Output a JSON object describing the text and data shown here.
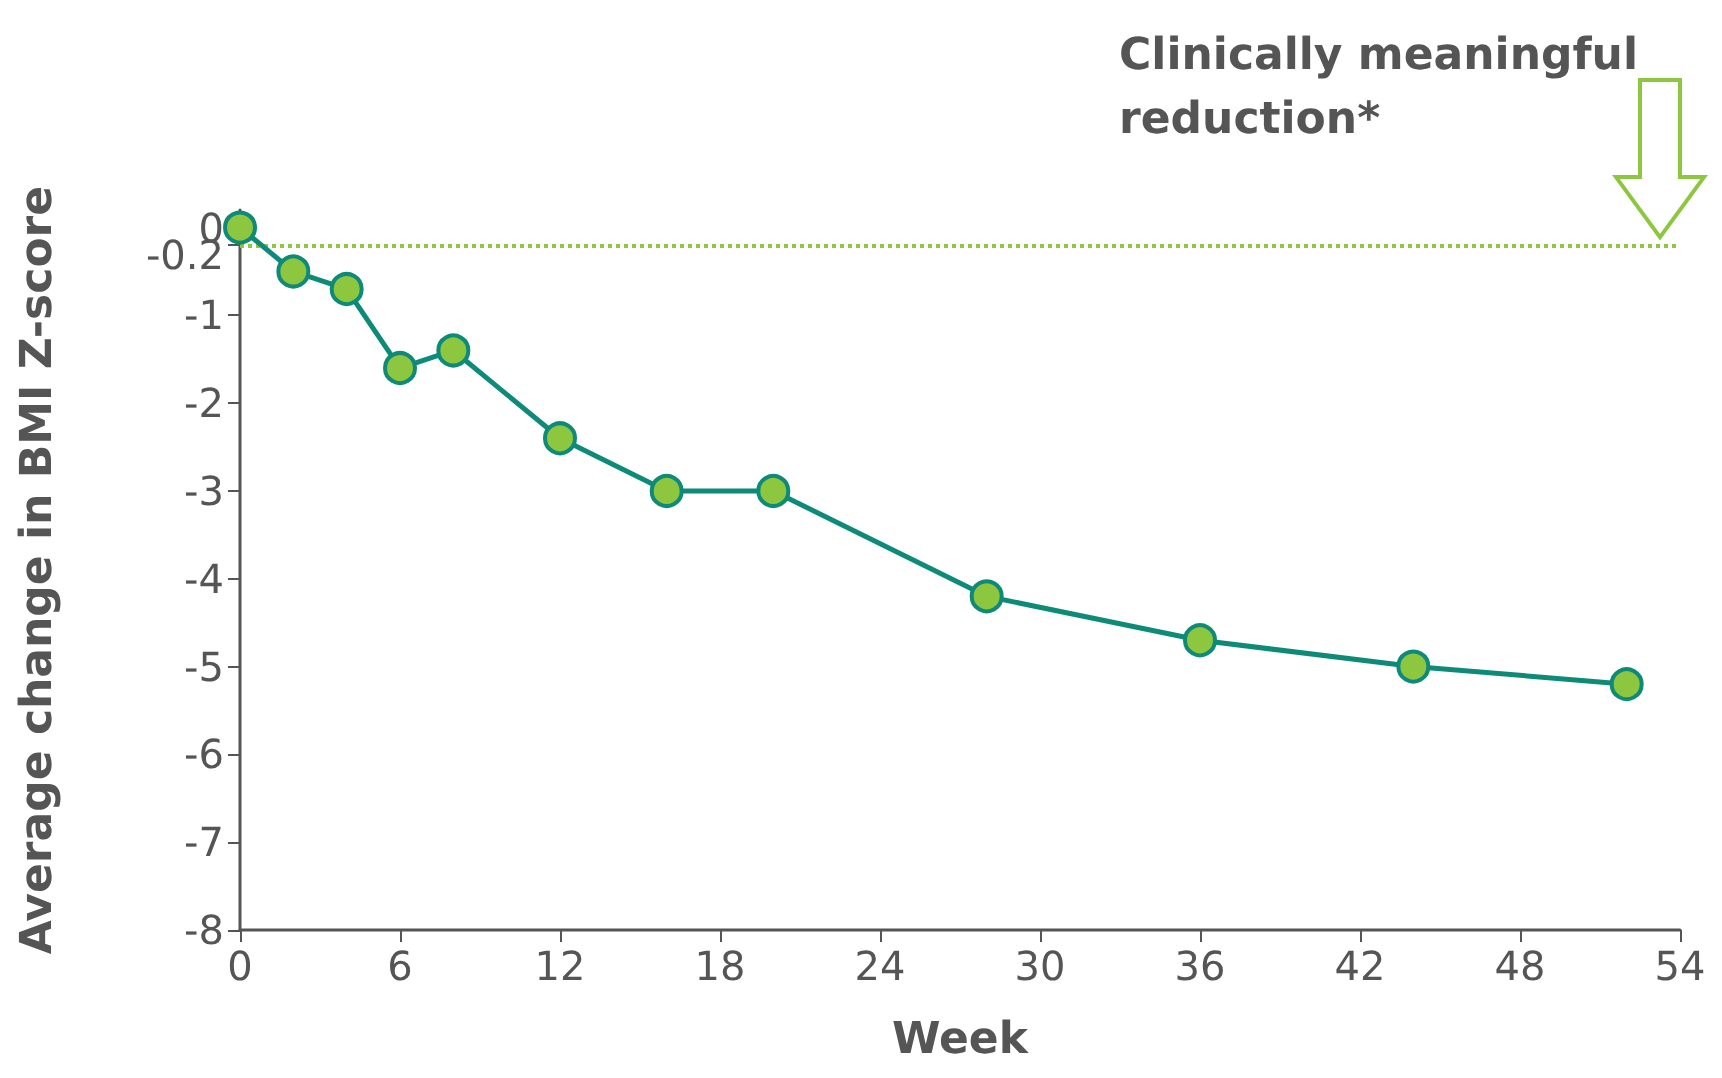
{
  "chart_data": {
    "type": "line",
    "xlabel": "Week",
    "ylabel": "Average change in BMI Z-score",
    "x": [
      0,
      2,
      4,
      6,
      8,
      12,
      16,
      20,
      28,
      36,
      44,
      52
    ],
    "series": [
      {
        "color": "#0e8a78",
        "values": [
          0,
          -0.5,
          -0.7,
          -1.6,
          -1.4,
          -2.4,
          -3.0,
          -3.0,
          -4.2,
          -4.7,
          -5.0,
          -5.2
        ]
      }
    ],
    "xlim": [
      0,
      54
    ],
    "xticks": [
      0,
      6,
      12,
      18,
      24,
      30,
      36,
      42,
      48,
      54
    ],
    "ylim": [
      -8,
      0.2
    ],
    "yticks": [
      0,
      -0.2,
      -1,
      -2,
      -3,
      -4,
      -5,
      -6,
      -7,
      -8
    ],
    "ref_lines": [
      {
        "axis": "y",
        "value": -0.2,
        "label": "Clinically meaningful reduction*",
        "color": "#8dc63f",
        "line_style": "dotted"
      }
    ],
    "marker": "circle",
    "line_style": "solid",
    "grid": false
  }
}
